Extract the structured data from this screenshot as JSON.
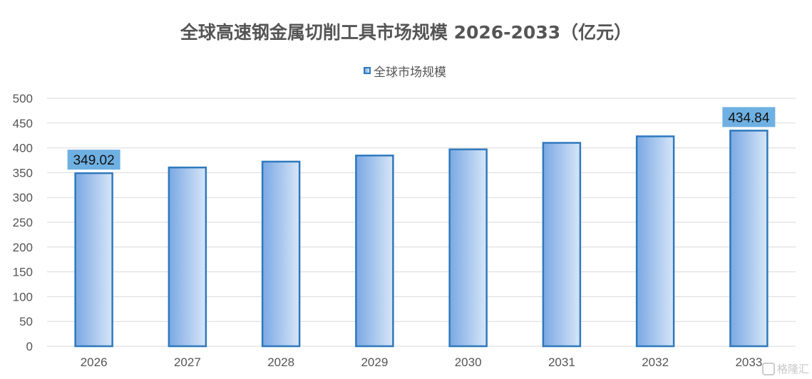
{
  "chart_data": {
    "type": "bar",
    "title": "全球高速钢金属切削工具市场规模 2026-2033（亿元）",
    "categories": [
      "2026",
      "2027",
      "2028",
      "2029",
      "2030",
      "2031",
      "2032",
      "2033"
    ],
    "series": [
      {
        "name": "全球市场规模",
        "values": [
          349.02,
          360.5,
          372.3,
          384.6,
          397.0,
          410.2,
          423.3,
          434.84
        ]
      }
    ],
    "data_labels": [
      {
        "category": "2026",
        "text": "349.02"
      },
      {
        "category": "2033",
        "text": "434.84"
      }
    ],
    "y_ticks": [
      "0",
      "50",
      "100",
      "150",
      "200",
      "250",
      "300",
      "350",
      "400",
      "450",
      "500"
    ],
    "ylim": [
      0,
      500
    ],
    "grid": true,
    "legend": "top-center",
    "colors": {
      "bar_light": "#d7e6f8",
      "bar_dark": "#7aa8e3",
      "bar_border": "#2f79bd",
      "label_bg": "#6fb0e3",
      "grid": "#d9d9d9"
    }
  },
  "watermark": "格隆汇"
}
